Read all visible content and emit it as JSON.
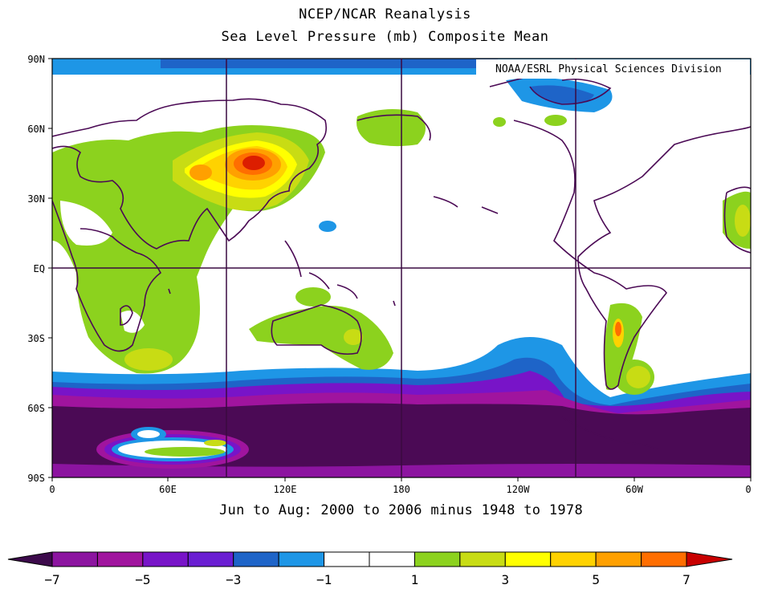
{
  "title_line1": "NCEP/NCAR Reanalysis",
  "title_line2": "Sea Level Pressure (mb) Composite Mean",
  "credit": "NOAA/ESRL Physical Sciences Division",
  "subtitle": "Jun to Aug: 2000 to 2006 minus 1948 to 1978",
  "lat_ticks": [
    "90N",
    "60N",
    "30N",
    "EQ",
    "30S",
    "60S",
    "90S"
  ],
  "lon_ticks": [
    "0",
    "60E",
    "120E",
    "180",
    "120W",
    "60W",
    "0"
  ],
  "colorbar": {
    "labels": [
      "-7",
      "-5",
      "-3",
      "-1",
      "1",
      "3",
      "5",
      "7"
    ],
    "colors": [
      "#5a0a6e",
      "#8c14a0",
      "#a0149e",
      "#7814c8",
      "#6a1ed2",
      "#1e64c8",
      "#1e96e6",
      "#ffffff",
      "#ffffff",
      "#8cd21e",
      "#c8dc14",
      "#ffff00",
      "#ffd200",
      "#ffa000",
      "#ff6e00",
      "#ff4600",
      "#c80000"
    ],
    "low_color": "#3c0a4b",
    "high_color": "#c80000"
  },
  "colors": {
    "deep_neg": "#4b0a55",
    "purple": "#8c14a0",
    "violet": "#7814c8",
    "blue": "#1e64c8",
    "light_blue": "#1e96e6",
    "green": "#8cd21e",
    "yellow_green": "#c8dc14",
    "yellow": "#ffff00",
    "orange": "#ffa000",
    "red": "#dc1e00",
    "coast": "#4b0a55"
  }
}
